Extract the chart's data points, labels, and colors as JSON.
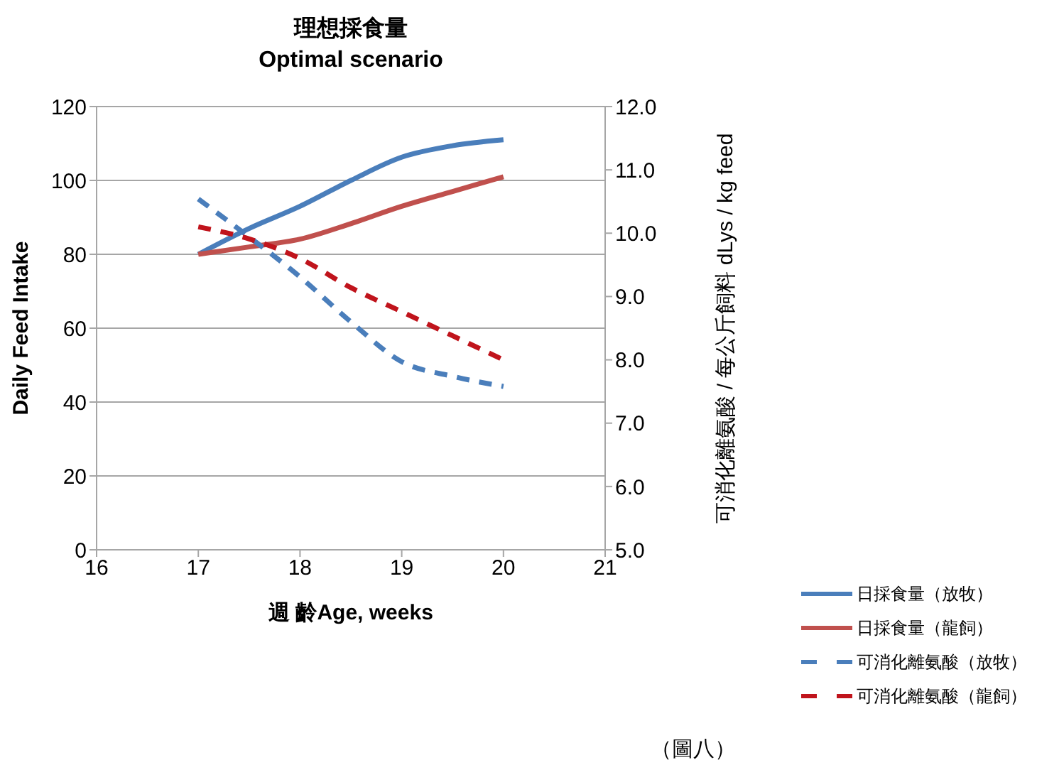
{
  "chart_data": {
    "type": "line",
    "title": "理想採食量",
    "subtitle": "Optimal scenario",
    "xlabel": "週 齡Age, weeks",
    "ylabel": "Daily Feed Intake",
    "y2label": "可消化離氨酸 / 每公斤飼料 dLys / kg feed",
    "x": [
      17,
      17.5,
      18,
      18.5,
      19,
      19.5,
      20
    ],
    "series": [
      {
        "name": "日採食量（放牧）",
        "color": "#4a7ebb",
        "line_style": "solid",
        "values": [
          80,
          87,
          93,
          100,
          106.3,
          109.4,
          111
        ]
      },
      {
        "name": "日採食量（龍飼）",
        "color": "#c0504d",
        "line_style": "solid",
        "values": [
          80,
          82,
          84.1,
          88.3,
          93,
          97,
          101
        ]
      },
      {
        "name": "可消化離氨酸（放牧）",
        "color": "#4a7ebb",
        "line_style": "dashed",
        "axis": "y2",
        "values": [
          10.54,
          9.94,
          9.31,
          8.6,
          7.97,
          7.74,
          7.58
        ]
      },
      {
        "name": "可消化離氨酸（龍飼）",
        "color": "#c0141c",
        "line_style": "dashed",
        "axis": "y2",
        "values": [
          10.1,
          9.91,
          9.6,
          9.14,
          8.76,
          8.38,
          8.0
        ]
      }
    ],
    "xlim": [
      16,
      21
    ],
    "xticks": [
      16,
      17,
      18,
      19,
      20,
      21
    ],
    "ylim": [
      0,
      120
    ],
    "yticks": [
      0,
      20,
      40,
      60,
      80,
      100,
      120
    ],
    "y2lim": [
      5,
      12
    ],
    "y2ticks": [
      {
        "value": 5,
        "label": "5.0"
      },
      {
        "value": 6,
        "label": "6.0"
      },
      {
        "value": 7,
        "label": "7.0"
      },
      {
        "value": 8,
        "label": "8.0"
      },
      {
        "value": 9,
        "label": "9.0"
      },
      {
        "value": 10,
        "label": "10.0"
      },
      {
        "value": 11,
        "label": "11.0"
      },
      {
        "value": 12,
        "label": "12.0"
      }
    ],
    "grid": "y",
    "legend": "bottom right",
    "marker": "none",
    "annotations": [
      "（圖八）"
    ]
  }
}
